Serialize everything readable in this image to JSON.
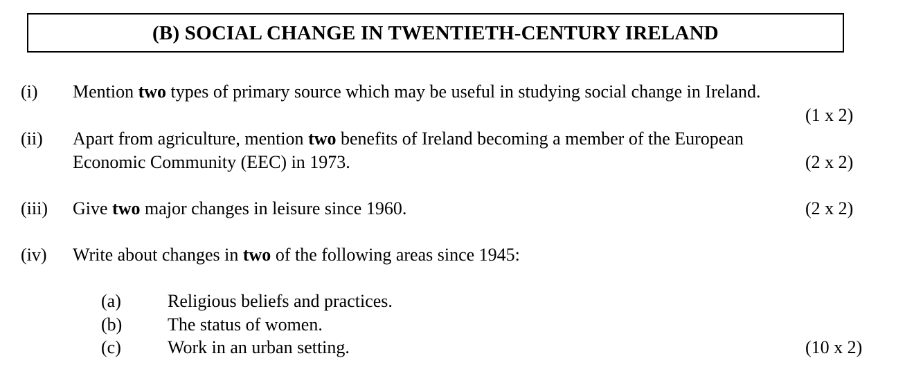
{
  "title": "(B) SOCIAL CHANGE IN TWENTIETH-CENTURY IRELAND",
  "questions": [
    {
      "number": "(i)",
      "pre": "Mention ",
      "bold": "two",
      "post": " types of primary source which may be useful in studying social change in Ireland.",
      "marks": "(1 x 2)"
    },
    {
      "number": "(ii)",
      "pre": "Apart from agriculture, mention ",
      "bold": "two",
      "post": " benefits of Ireland becoming a member of the European",
      "line2": "Economic Community (EEC) in 1973.",
      "marks": "(2 x 2)"
    },
    {
      "number": "(iii)",
      "pre": "Give ",
      "bold": "two",
      "post": " major changes in leisure since 1960.",
      "marks": "(2 x 2)"
    },
    {
      "number": "(iv)",
      "pre": "Write about changes in ",
      "bold": "two",
      "post": " of the following areas since 1945:",
      "options": [
        {
          "letter": "(a)",
          "text": "Religious beliefs and practices."
        },
        {
          "letter": "(b)",
          "text": "The status of women."
        },
        {
          "letter": "(c)",
          "text": "Work in an urban setting."
        }
      ],
      "marks": "(10 x 2)"
    }
  ]
}
